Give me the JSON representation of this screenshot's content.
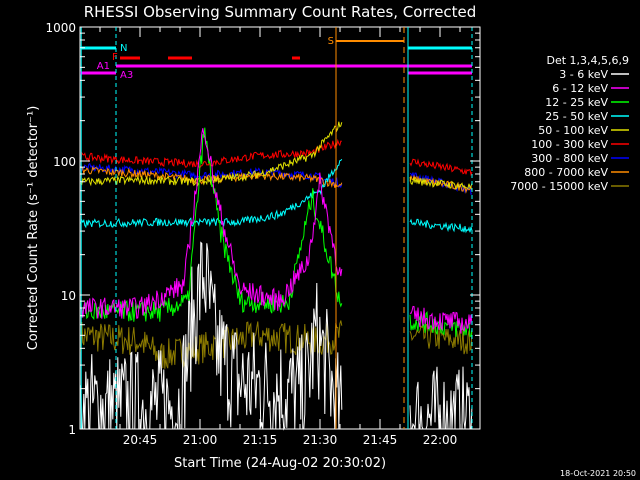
{
  "chart_data": {
    "type": "line",
    "title": "RHESSI Observing Summary Count Rates, Corrected",
    "xlabel": "Start Time (24-Aug-02 20:30:02)",
    "ylabel": "Corrected Count Rate (s⁻¹ detector⁻¹)",
    "yscale": "log",
    "ylim": [
      1,
      1000
    ],
    "xlim": [
      "20:30",
      "22:10"
    ],
    "x_ticks": [
      "20:45",
      "21:00",
      "21:15",
      "21:30",
      "21:45",
      "22:00"
    ],
    "y_ticks": [
      "1",
      "10",
      "100",
      "1000"
    ],
    "grid": false,
    "legend_title": "Det 1,3,4,5,6,9",
    "legend_position": "right",
    "series": [
      {
        "name": "3 - 6 keV",
        "color": "#ffffff"
      },
      {
        "name": "6 - 12 keV",
        "color": "#ff00ff"
      },
      {
        "name": "12 - 25 keV",
        "color": "#00ff00"
      },
      {
        "name": "25 - 50 keV",
        "color": "#00ffff"
      },
      {
        "name": "50 - 100 keV",
        "color": "#e0e000"
      },
      {
        "name": "100 - 300 keV",
        "color": "#ff0000"
      },
      {
        "name": "300 - 800 keV",
        "color": "#0000ff"
      },
      {
        "name": "800 - 7000 keV",
        "color": "#ff8c00"
      },
      {
        "name": "7000 - 15000 keV",
        "color": "#8b7a00"
      }
    ],
    "flag_labels": {
      "night": "N",
      "saa": "S",
      "flare": "F",
      "attenuator_1": "A1",
      "attenuator_3": "A3"
    },
    "timestamp": "18-Oct-2021 20:50"
  }
}
